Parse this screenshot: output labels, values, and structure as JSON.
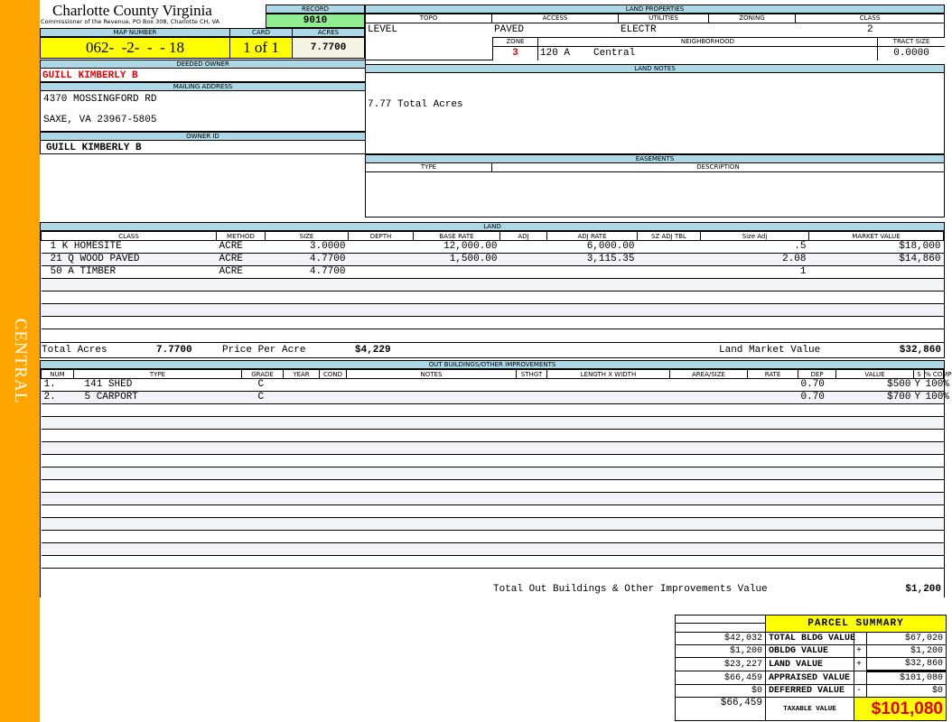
{
  "sidebar": {
    "label": "CENTRAL",
    "color": "#ffa500"
  },
  "header": {
    "title": "Charlotte County Virginia",
    "subtitle": "Commissioner of the Revenue, PO Box 308, Charlotte CH, VA"
  },
  "record": {
    "label": "RECORD",
    "value": "9010"
  },
  "map": {
    "label": "MAP NUMBER",
    "value": "062-  -2-  -  - 18",
    "card_label": "CARD",
    "card": "1 of 1",
    "acres_label": "ACRES",
    "acres": "7.7700"
  },
  "owner": {
    "deeded_label": "DEEDED OWNER",
    "deeded": "GUILL KIMBERLY B",
    "mail_label": "MAILING ADDRESS",
    "address1": "4370 MOSSINGFORD RD",
    "address2": "SAXE, VA 23967-5805",
    "id_label": "OWNER ID",
    "id": "GUILL KIMBERLY B"
  },
  "land_props": {
    "title": "LAND PROPERTIES",
    "topo_label": "TOPO",
    "access_label": "ACCESS",
    "utilities_label": "UTILITIES",
    "zoning_label": "ZONING",
    "class_label": "CLASS",
    "topo": "LEVEL",
    "access": "PAVED",
    "utilities": "ELECTR",
    "class": "2",
    "zone_label": "ZONE",
    "neigh_label": "NEIGHBORHOOD",
    "tract_label": "TRACT SIZE",
    "zone": "3",
    "neigh_code": "120 A",
    "neigh": "Central",
    "tract": "0.0000"
  },
  "land_notes": {
    "title": "LAND NOTES",
    "text": "7.77 Total Acres"
  },
  "easements": {
    "title": "EASEMENTS",
    "type_label": "TYPE",
    "desc_label": "DESCRIPTION"
  },
  "land": {
    "title": "LAND",
    "columns": [
      "CLASS",
      "METHOD",
      "SIZE",
      "DEPTH",
      "BASE RATE",
      "ADJ",
      "ADJ RATE",
      "SZ ADJ TBL",
      "Size Adj",
      "MARKET VALUE"
    ],
    "rows": [
      [
        "1 K HOMESITE",
        "ACRE",
        "3.0000",
        "",
        "12,000.00",
        "",
        "6,000.00",
        "",
        ".5",
        "$18,000"
      ],
      [
        "21 Q WOOD PAVED",
        "ACRE",
        "4.7700",
        "",
        "1,500.00",
        "",
        "3,115.35",
        "",
        "2.08",
        "$14,860"
      ],
      [
        "50 A TIMBER",
        "ACRE",
        "4.7700",
        "",
        "",
        "",
        "",
        "",
        "1",
        ""
      ]
    ],
    "total_acres_label": "Total Acres",
    "total_acres": "7.7700",
    "ppa_label": "Price Per Acre",
    "ppa": "$4,229",
    "lmv_label": "Land Market Value",
    "lmv": "$32,860"
  },
  "outbuildings": {
    "title": "OUT BUILDINGS/OTHER IMPROVEMENTS",
    "columns": [
      "NUM",
      "TYPE",
      "GRADE",
      "YEAR",
      "COND",
      "NOTES",
      "STHGT",
      "LENGTH X WIDTH",
      "AREA/SIZE",
      "RATE",
      "DEP",
      "VALUE",
      "S",
      "% COMP"
    ],
    "rows": [
      [
        "1.",
        "141 SHED",
        "C",
        "",
        "",
        "",
        "",
        "",
        "",
        "",
        "0.70",
        "$500",
        "Y",
        "100%"
      ],
      [
        "2.",
        "5 CARPORT",
        "C",
        "",
        "",
        "",
        "",
        "",
        "",
        "",
        "0.70",
        "$700",
        "Y",
        "100%"
      ]
    ],
    "total_label": "Total Out Buildings & Other Improvements Value",
    "total": "$1,200"
  },
  "summary": {
    "title": "PARCEL SUMMARY",
    "rows": [
      {
        "prior": "$42,032",
        "label": "TOTAL BLDG VALUE",
        "sign": "",
        "value": "$67,020"
      },
      {
        "prior": "$1,200",
        "label": "OBLDG VALUE",
        "sign": "+",
        "value": "$1,200"
      },
      {
        "prior": "$23,227",
        "label": "LAND VALUE",
        "sign": "+",
        "value": "$32,860"
      },
      {
        "prior": "$66,459",
        "label": "APPRAISED VALUE",
        "sign": "",
        "value": "$101,080"
      },
      {
        "prior": "$0",
        "label": "DEFERRED VALUE",
        "sign": "-",
        "value": "$0"
      }
    ],
    "taxable_prior": "$66,459",
    "taxable_label": "TAXABLE VALUE",
    "taxable": "$101,080"
  },
  "colors": {
    "header_bar": "#add8e6",
    "highlight": "#ffff00",
    "record": "#90ee90",
    "owner_red": "#e00000"
  }
}
